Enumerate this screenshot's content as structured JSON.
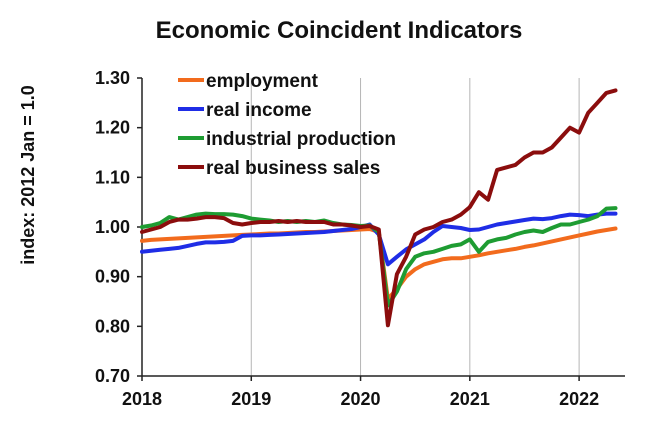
{
  "chart_data": {
    "type": "line",
    "title": "Economic Coincident Indicators",
    "xlabel": "",
    "ylabel": "index: 2012 Jan = 1.0",
    "ylim": [
      0.7,
      1.3
    ],
    "xlim": [
      2018.0,
      2022.42
    ],
    "y_ticks": [
      "1.30",
      "1.20",
      "1.10",
      "1.00",
      "0.90",
      "0.80",
      "0.70"
    ],
    "y_tick_values": [
      1.3,
      1.2,
      1.1,
      1.0,
      0.9,
      0.8,
      0.7
    ],
    "x_ticks": [
      "2018",
      "2019",
      "2020",
      "2021",
      "2022"
    ],
    "x_tick_values": [
      2018,
      2019,
      2020,
      2021,
      2022
    ],
    "grid": "vertical gridlines at years",
    "legend_position": "top-left",
    "x": [
      2018.0,
      2018.083,
      2018.167,
      2018.25,
      2018.333,
      2018.417,
      2018.5,
      2018.583,
      2018.667,
      2018.75,
      2018.833,
      2018.917,
      2019.0,
      2019.083,
      2019.167,
      2019.25,
      2019.333,
      2019.417,
      2019.5,
      2019.583,
      2019.667,
      2019.75,
      2019.833,
      2019.917,
      2020.0,
      2020.083,
      2020.167,
      2020.25,
      2020.333,
      2020.417,
      2020.5,
      2020.583,
      2020.667,
      2020.75,
      2020.833,
      2020.917,
      2021.0,
      2021.083,
      2021.167,
      2021.25,
      2021.333,
      2021.417,
      2021.5,
      2021.583,
      2021.667,
      2021.75,
      2021.833,
      2021.917,
      2022.0,
      2022.083,
      2022.167,
      2022.25,
      2022.333
    ],
    "series": [
      {
        "name": "employment",
        "color": "#f26b1d",
        "values": [
          0.972,
          0.974,
          0.975,
          0.976,
          0.977,
          0.978,
          0.979,
          0.98,
          0.981,
          0.982,
          0.983,
          0.984,
          0.985,
          0.986,
          0.987,
          0.987,
          0.988,
          0.989,
          0.99,
          0.99,
          0.991,
          0.992,
          0.993,
          0.994,
          0.995,
          0.996,
          0.99,
          0.855,
          0.875,
          0.9,
          0.915,
          0.925,
          0.93,
          0.935,
          0.937,
          0.937,
          0.94,
          0.943,
          0.947,
          0.95,
          0.953,
          0.956,
          0.96,
          0.963,
          0.967,
          0.971,
          0.975,
          0.979,
          0.983,
          0.987,
          0.991,
          0.994,
          0.997
        ]
      },
      {
        "name": "real income",
        "color": "#1f2de6",
        "values": [
          0.95,
          0.952,
          0.954,
          0.956,
          0.958,
          0.962,
          0.966,
          0.969,
          0.969,
          0.97,
          0.972,
          0.982,
          0.983,
          0.983,
          0.984,
          0.985,
          0.986,
          0.987,
          0.988,
          0.989,
          0.99,
          0.992,
          0.994,
          0.996,
          1.0,
          1.005,
          0.985,
          0.925,
          0.94,
          0.955,
          0.965,
          0.975,
          0.99,
          1.002,
          1.0,
          0.998,
          0.994,
          0.995,
          1.0,
          1.005,
          1.008,
          1.011,
          1.014,
          1.017,
          1.016,
          1.018,
          1.022,
          1.025,
          1.024,
          1.022,
          1.025,
          1.027,
          1.027
        ]
      },
      {
        "name": "industrial production",
        "color": "#1e9c32",
        "values": [
          1.0,
          1.003,
          1.008,
          1.02,
          1.015,
          1.02,
          1.025,
          1.027,
          1.026,
          1.026,
          1.025,
          1.022,
          1.017,
          1.015,
          1.013,
          1.01,
          1.012,
          1.01,
          1.012,
          1.01,
          1.013,
          1.008,
          1.005,
          1.004,
          1.002,
          1.003,
          0.99,
          0.842,
          0.87,
          0.915,
          0.94,
          0.947,
          0.95,
          0.956,
          0.962,
          0.965,
          0.975,
          0.95,
          0.97,
          0.975,
          0.978,
          0.985,
          0.99,
          0.993,
          0.99,
          0.998,
          1.005,
          1.005,
          1.01,
          1.015,
          1.022,
          1.037,
          1.038
        ]
      },
      {
        "name": "real business sales",
        "color": "#8b0d0d",
        "values": [
          0.99,
          0.995,
          1.0,
          1.01,
          1.015,
          1.015,
          1.017,
          1.02,
          1.02,
          1.018,
          1.008,
          1.005,
          1.008,
          1.01,
          1.01,
          1.012,
          1.01,
          1.012,
          1.01,
          1.01,
          1.01,
          1.005,
          1.005,
          1.003,
          1.0,
          1.002,
          0.995,
          0.802,
          0.905,
          0.94,
          0.985,
          0.995,
          1.0,
          1.01,
          1.015,
          1.025,
          1.04,
          1.07,
          1.055,
          1.115,
          1.12,
          1.125,
          1.14,
          1.15,
          1.15,
          1.16,
          1.18,
          1.2,
          1.19,
          1.23,
          1.25,
          1.27,
          1.275
        ]
      }
    ]
  }
}
